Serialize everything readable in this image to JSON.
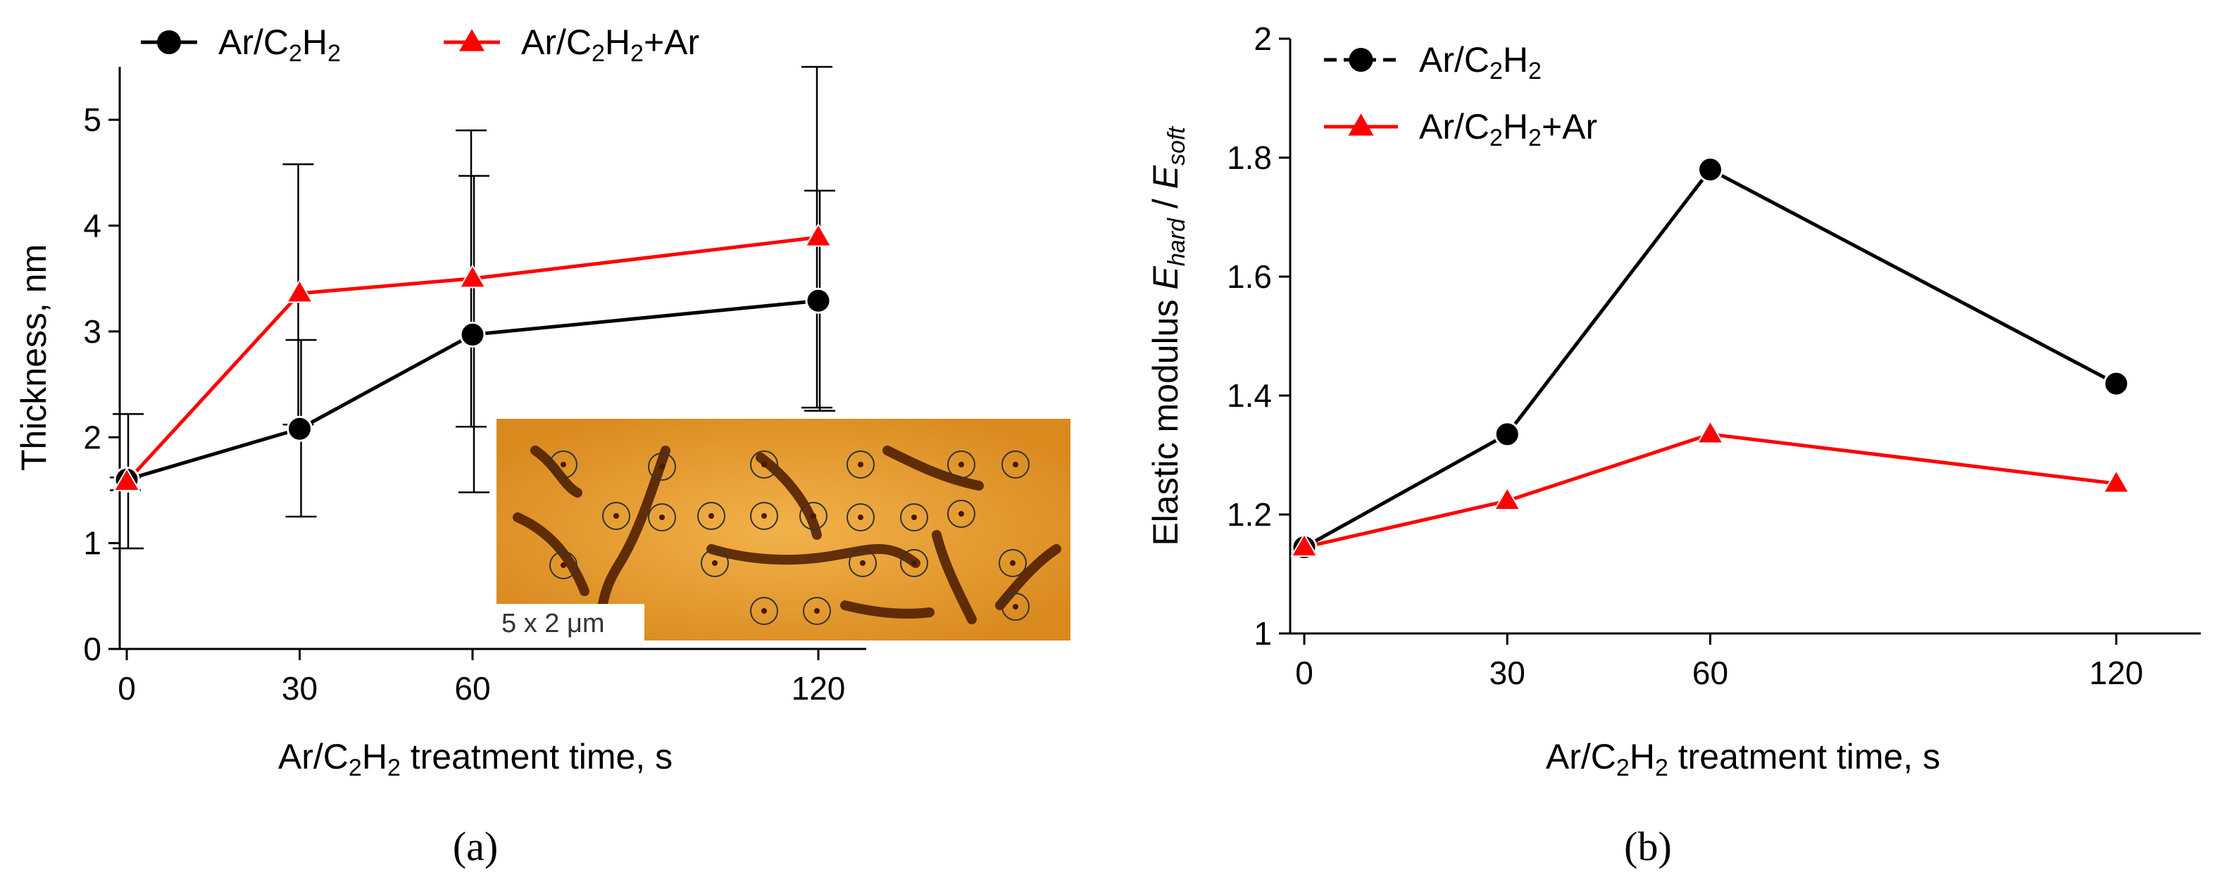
{
  "chart_data": [
    {
      "type": "line",
      "panel_label": "(a)",
      "xlabel": "Ar/C2H2 treatment time, s",
      "xlabel_parts": [
        "Ar/C",
        "2",
        "H",
        "2",
        " treatment time, s"
      ],
      "ylabel": "Thickness, nm",
      "xlim": [
        0,
        130
      ],
      "ylim": [
        0,
        5.5
      ],
      "x_ticks": [
        0,
        30,
        60,
        120
      ],
      "y_ticks": [
        0,
        1,
        2,
        3,
        4,
        5
      ],
      "legend_position": "top-left",
      "series": [
        {
          "name": "Ar/C2H2",
          "name_parts": [
            "Ar/C",
            "2",
            "H",
            "2",
            ""
          ],
          "marker": "circle",
          "color": "#000000",
          "x": [
            0,
            30,
            60,
            120
          ],
          "y": [
            1.6,
            2.08,
            2.97,
            3.29
          ],
          "err_low": [
            0.95,
            1.25,
            1.48,
            2.25
          ],
          "err_high": [
            2.22,
            2.92,
            4.47,
            4.33
          ]
        },
        {
          "name": "Ar/C2H2+Ar",
          "name_parts": [
            "Ar/C",
            "2",
            "H",
            "2",
            "+Ar"
          ],
          "marker": "triangle",
          "color": "#ff0000",
          "x": [
            0,
            30,
            60,
            120
          ],
          "y": [
            1.58,
            3.36,
            3.5,
            3.89
          ],
          "err_low": [
            1.5,
            2.12,
            2.1,
            2.28
          ],
          "err_high": [
            1.62,
            4.58,
            4.9,
            5.5
          ]
        }
      ],
      "inset": {
        "scale_label": "5 x 2 μm"
      }
    },
    {
      "type": "line",
      "panel_label": "(b)",
      "xlabel": "Ar/C2H2 treatment time, s",
      "xlabel_parts": [
        "Ar/C",
        "2",
        "H",
        "2",
        " treatment time, s"
      ],
      "ylabel": "Elastic modulus Ehard / Esoft",
      "ylabel_parts": {
        "prefix": "Elastic modulus ",
        "e1": "E",
        "s1": "hard",
        "mid": " / ",
        "e2": "E",
        "s2": "soft"
      },
      "xlim": [
        0,
        130
      ],
      "ylim": [
        1,
        2
      ],
      "x_ticks": [
        0,
        30,
        60,
        120
      ],
      "y_ticks": [
        1,
        1.2,
        1.4,
        1.6,
        1.8,
        2
      ],
      "legend_position": "top-left",
      "series": [
        {
          "name": "Ar/C2H2",
          "name_parts": [
            "Ar/C",
            "2",
            "H",
            "2",
            ""
          ],
          "marker": "circle",
          "color": "#000000",
          "x": [
            0,
            30,
            60,
            120
          ],
          "y": [
            1.145,
            1.335,
            1.78,
            1.42
          ]
        },
        {
          "name": "Ar/C2H2+Ar",
          "name_parts": [
            "Ar/C",
            "2",
            "H",
            "2",
            "+Ar"
          ],
          "marker": "triangle",
          "color": "#ff0000",
          "x": [
            0,
            30,
            60,
            120
          ],
          "y": [
            1.145,
            1.223,
            1.335,
            1.252
          ]
        }
      ]
    }
  ]
}
